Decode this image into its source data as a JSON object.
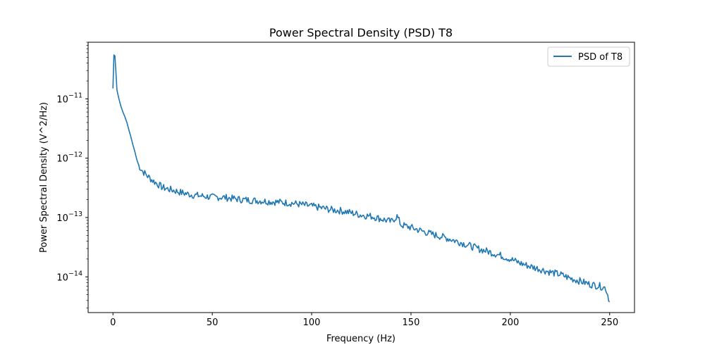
{
  "chart_data": {
    "type": "line",
    "title": "Power Spectral Density (PSD) T8",
    "xlabel": "Frequency (Hz)",
    "ylabel": "Power Spectral Density (V^2/Hz)",
    "xlim": [
      -12.5,
      262.5
    ],
    "ylim": [
      2.5e-15,
      9e-11
    ],
    "yscale": "log",
    "xticks": [
      0,
      50,
      100,
      150,
      200,
      250
    ],
    "xtick_labels": [
      "0",
      "50",
      "100",
      "150",
      "200",
      "250"
    ],
    "yticks": [
      1e-14,
      1e-13,
      1e-12,
      1e-11
    ],
    "ytick_labels": [
      {
        "base": "10",
        "exp": "−14"
      },
      {
        "base": "10",
        "exp": "−13"
      },
      {
        "base": "10",
        "exp": "−12"
      },
      {
        "base": "10",
        "exp": "−11"
      }
    ],
    "grid": false,
    "legend_position": "top-right",
    "series": [
      {
        "name": "PSD of T8",
        "color": "#1f77b4",
        "x": [
          0,
          0.5,
          1,
          2,
          3,
          4,
          5,
          6,
          7,
          8,
          9,
          10,
          11,
          12,
          13,
          15,
          18,
          20,
          25,
          30,
          35,
          40,
          45,
          50,
          55,
          60,
          65,
          70,
          75,
          80,
          85,
          90,
          95,
          100,
          105,
          110,
          115,
          120,
          125,
          130,
          135,
          140,
          143,
          145,
          150,
          155,
          160,
          165,
          170,
          175,
          180,
          185,
          190,
          195,
          200,
          205,
          210,
          215,
          220,
          225,
          230,
          235,
          240,
          245,
          248,
          250
        ],
        "y": [
          1.5e-11,
          5.5e-11,
          5.3e-11,
          1.4e-11,
          1e-11,
          7.5e-12,
          6e-12,
          5e-12,
          4e-12,
          3e-12,
          2.3e-12,
          1.7e-12,
          1.3e-12,
          9.5e-13,
          7.5e-13,
          6e-13,
          4.8e-13,
          4.2e-13,
          3.2e-13,
          2.9e-13,
          2.6e-13,
          2.4e-13,
          2.3e-13,
          2.2e-13,
          2.2e-13,
          2.1e-13,
          2e-13,
          1.95e-13,
          1.9e-13,
          1.85e-13,
          1.8e-13,
          1.75e-13,
          1.65e-13,
          1.55e-13,
          1.45e-13,
          1.35e-13,
          1.3e-13,
          1.2e-13,
          1.1e-13,
          1.05e-13,
          9.5e-14,
          8.5e-14,
          1.05e-13,
          7.5e-14,
          6.8e-14,
          6e-14,
          5.3e-14,
          4.8e-14,
          4.3e-14,
          3.8e-14,
          3.3e-14,
          2.9e-14,
          2.6e-14,
          2.3e-14,
          2e-14,
          1.7e-14,
          1.5e-14,
          1.35e-14,
          1.2e-14,
          1.1e-14,
          9.5e-15,
          8.5e-15,
          7.5e-15,
          7e-15,
          6.5e-15,
          3.8e-15
        ]
      }
    ]
  }
}
